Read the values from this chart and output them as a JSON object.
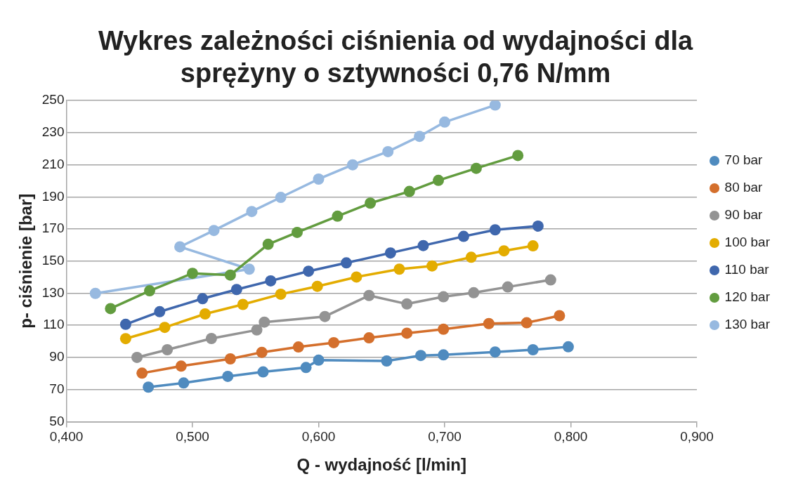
{
  "chart_data": {
    "type": "line",
    "title": "Wykres zależności ciśnienia od wydajności dla sprężyny o sztywności 0,76 N/mm",
    "xlabel": "Q - wydajność [l/min]",
    "ylabel": "p- ciśnienie [bar]",
    "xlim": [
      0.4,
      0.9
    ],
    "xticks": [
      {
        "value": 0.4,
        "label": "0,400"
      },
      {
        "value": 0.5,
        "label": "0,500"
      },
      {
        "value": 0.6,
        "label": "0,600"
      },
      {
        "value": 0.7,
        "label": "0,700"
      },
      {
        "value": 0.8,
        "label": "0,800"
      },
      {
        "value": 0.9,
        "label": "0,900"
      }
    ],
    "ylim": [
      50,
      250
    ],
    "yticks": [
      50,
      70,
      90,
      110,
      130,
      150,
      170,
      190,
      210,
      230,
      250
    ],
    "grid": "y",
    "legend": "right",
    "marker": "circle",
    "line_style": "solid",
    "series": [
      {
        "name": "70 bar",
        "color": "#4f8bbf",
        "x": [
          0.465,
          0.493,
          0.528,
          0.556,
          0.59,
          0.6,
          0.654,
          0.681,
          0.699,
          0.74,
          0.77,
          0.798
        ],
        "values": [
          71.5,
          74.1,
          78.2,
          81.0,
          83.7,
          88.3,
          87.8,
          91.2,
          91.6,
          93.4,
          94.8,
          96.6
        ]
      },
      {
        "name": "80 bar",
        "color": "#d46f2c",
        "x": [
          0.46,
          0.491,
          0.53,
          0.555,
          0.584,
          0.612,
          0.64,
          0.67,
          0.699,
          0.735,
          0.765,
          0.791
        ],
        "values": [
          80.2,
          84.6,
          89.1,
          93.2,
          96.5,
          99.2,
          102.2,
          105.1,
          107.6,
          111.1,
          111.6,
          116.0
        ]
      },
      {
        "name": "90 bar",
        "color": "#939393",
        "x": [
          0.456,
          0.48,
          0.515,
          0.551,
          0.557,
          0.605,
          0.64,
          0.67,
          0.699,
          0.723,
          0.75,
          0.784
        ],
        "values": [
          90.0,
          94.8,
          101.8,
          107.1,
          112.0,
          115.5,
          128.6,
          123.3,
          127.8,
          130.3,
          133.9,
          138.3
        ]
      },
      {
        "name": "100 bar",
        "color": "#e3ac00",
        "x": [
          0.447,
          0.478,
          0.51,
          0.54,
          0.57,
          0.599,
          0.63,
          0.664,
          0.69,
          0.721,
          0.747,
          0.77
        ],
        "values": [
          101.7,
          108.7,
          117.1,
          123.0,
          129.4,
          134.3,
          140.1,
          145.0,
          147.0,
          152.4,
          156.4,
          159.5
        ]
      },
      {
        "name": "110 bar",
        "color": "#3f67ad",
        "x": [
          0.447,
          0.474,
          0.508,
          0.535,
          0.562,
          0.592,
          0.622,
          0.657,
          0.683,
          0.715,
          0.74,
          0.774
        ],
        "values": [
          110.6,
          118.5,
          126.6,
          132.3,
          137.7,
          143.7,
          148.9,
          155.1,
          159.7,
          165.4,
          169.5,
          171.8
        ]
      },
      {
        "name": "120 bar",
        "color": "#629c3f",
        "x": [
          0.435,
          0.466,
          0.5,
          0.53,
          0.56,
          0.583,
          0.615,
          0.641,
          0.672,
          0.695,
          0.725,
          0.758
        ],
        "values": [
          120.4,
          131.5,
          142.4,
          141.3,
          160.5,
          167.9,
          178.0,
          186.1,
          193.4,
          200.3,
          207.8,
          215.8
        ]
      },
      {
        "name": "130 bar",
        "color": "#97b9e0",
        "x": [
          0.423,
          0.545,
          0.49,
          0.517,
          0.547,
          0.57,
          0.6,
          0.627,
          0.655,
          0.68,
          0.7,
          0.74
        ],
        "values": [
          129.9,
          145.0,
          158.9,
          169.1,
          180.9,
          189.7,
          201.1,
          210.0,
          218.2,
          227.7,
          236.6,
          247.2
        ]
      }
    ]
  }
}
